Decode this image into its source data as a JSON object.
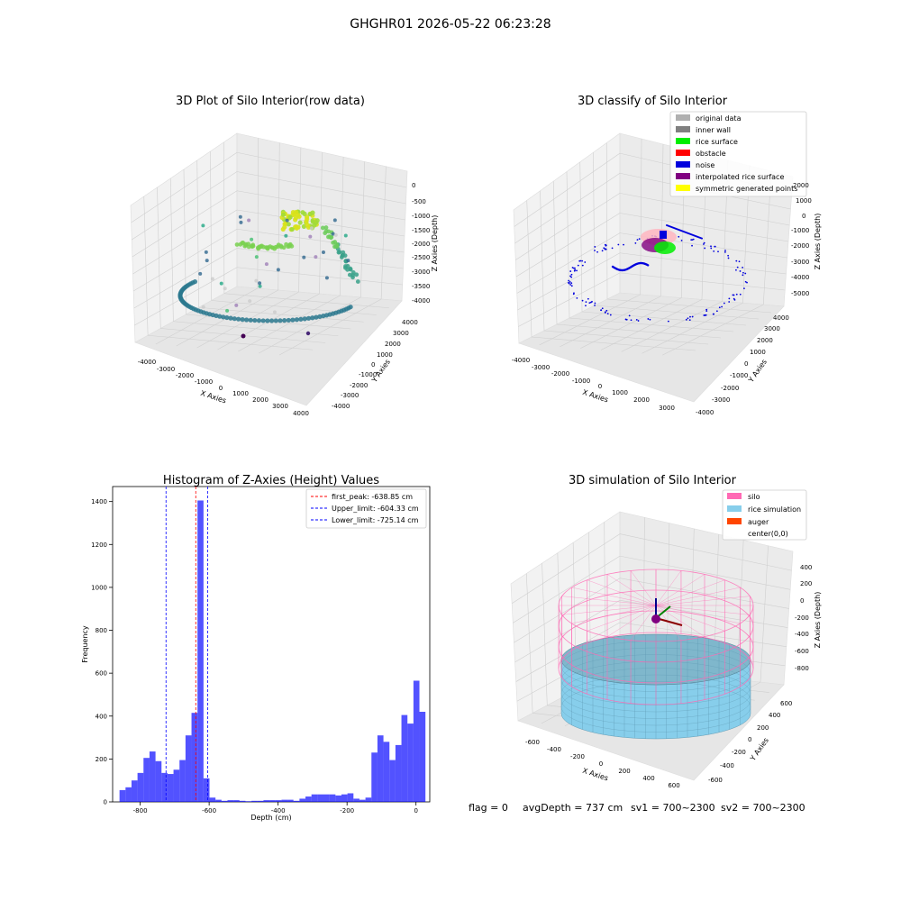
{
  "header": {
    "title": "GHGHR01 2026-05-22 06:23:28"
  },
  "raw_plot": {
    "title": "3D Plot of Silo Interior(row data)",
    "xlabel": "X Axies",
    "ylabel": "Y Axies",
    "zlabel": "Z Axies (Depth)",
    "x_ticks": [
      "-4000",
      "-3000",
      "-2000",
      "-1000",
      "0",
      "1000",
      "2000",
      "3000",
      "4000"
    ],
    "y_ticks": [
      "-4000",
      "-3000",
      "-2000",
      "-1000",
      "0",
      "1000",
      "2000",
      "3000",
      "4000"
    ],
    "z_ticks": [
      "0",
      "-500",
      "-1000",
      "-1500",
      "-2000",
      "-2500",
      "-3000",
      "-3500",
      "-4000"
    ]
  },
  "classify_plot": {
    "title": "3D classify of Silo Interior",
    "xlabel": "X Axies",
    "ylabel": "Y Axies",
    "zlabel": "Z Axies (Depth)",
    "x_ticks": [
      "-4000",
      "-3000",
      "-2000",
      "-1000",
      "0",
      "1000",
      "2000",
      "3000"
    ],
    "y_ticks": [
      "-4000",
      "-3000",
      "-2000",
      "-1000",
      "0",
      "1000",
      "2000",
      "3000",
      "4000"
    ],
    "z_ticks": [
      "2000",
      "1000",
      "0",
      "-1000",
      "-2000",
      "-3000",
      "-4000",
      "-5000"
    ],
    "legend": [
      {
        "label": "original data",
        "color": "#b0b0b0"
      },
      {
        "label": "inner wall",
        "color": "#808080"
      },
      {
        "label": "rice surface",
        "color": "#00ee00"
      },
      {
        "label": "obstacle",
        "color": "#ff0000"
      },
      {
        "label": "noise",
        "color": "#0000dd"
      },
      {
        "label": "interpolated rice surface",
        "color": "#800080"
      },
      {
        "label": "symmetric generated points",
        "color": "#ffff00"
      }
    ]
  },
  "sim_plot": {
    "title": "3D simulation of Silo Interior",
    "xlabel": "X Axies",
    "ylabel": "Y Axies",
    "zlabel": "Z Axies (Depth)",
    "x_ticks": [
      "-600",
      "-400",
      "-200",
      "0",
      "200",
      "400",
      "600"
    ],
    "y_ticks": [
      "-600",
      "-400",
      "-200",
      "0",
      "200",
      "400",
      "600"
    ],
    "z_ticks": [
      "400",
      "200",
      "0",
      "-200",
      "-400",
      "-600",
      "-800"
    ],
    "legend": [
      {
        "label": "silo",
        "color": "#ff69b4"
      },
      {
        "label": "rice simulation",
        "color": "#87ceeb"
      },
      {
        "label": "auger",
        "color": "#ff4500"
      },
      {
        "label": "center(0,0)",
        "color": ""
      }
    ]
  },
  "status": {
    "flag": "flag = 0",
    "avg": "avgDepth = 737 cm",
    "sv1": "sv1 = 700~2300",
    "sv2": "sv2 = 700~2300"
  },
  "chart_data": {
    "type": "bar",
    "title": "Histogram of Z-Axies (Height) Values",
    "xlabel": "Depth (cm)",
    "ylabel": "Frequency",
    "xlim": [
      -880,
      40
    ],
    "ylim": [
      0,
      1470
    ],
    "x_ticks": [
      -800,
      -600,
      -400,
      -200,
      0
    ],
    "y_ticks": [
      0,
      200,
      400,
      600,
      800,
      1000,
      1200,
      1400
    ],
    "bin_start": -860,
    "bin_width": 17.4,
    "values": [
      55,
      68,
      100,
      135,
      205,
      235,
      190,
      135,
      130,
      150,
      195,
      310,
      415,
      1405,
      110,
      20,
      10,
      5,
      8,
      8,
      5,
      3,
      5,
      5,
      8,
      8,
      8,
      10,
      10,
      5,
      15,
      25,
      35,
      35,
      35,
      35,
      30,
      35,
      40,
      15,
      10,
      20,
      230,
      310,
      280,
      195,
      265,
      405,
      365,
      565,
      420
    ],
    "lines": [
      {
        "label": "first_peak: -638.85 cm",
        "x": -638.85,
        "color": "#ff0000"
      },
      {
        "label": "Upper_limit: -604.33 cm",
        "x": -604.33,
        "color": "#0000ff"
      },
      {
        "label": "Lower_limit: -725.14 cm",
        "x": -725.14,
        "color": "#0000ff"
      }
    ]
  }
}
